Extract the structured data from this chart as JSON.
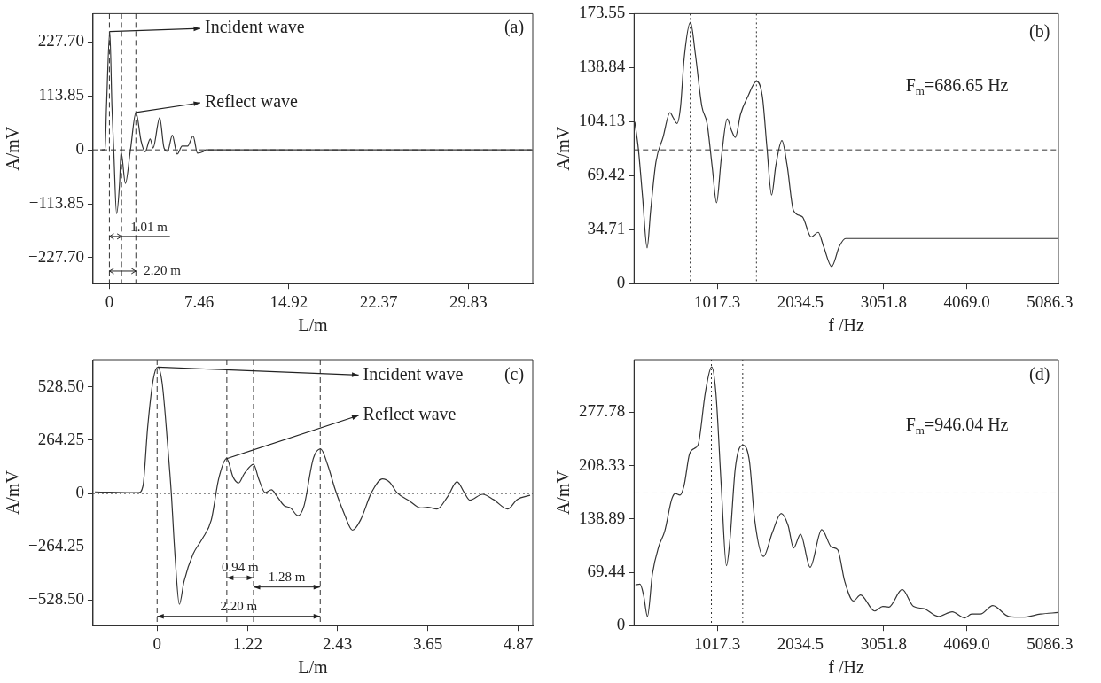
{
  "chart_data": [
    {
      "type": "line",
      "xlabel": "L/m",
      "ylabel": "A/mV",
      "xlim": [
        -1.36,
        35.19
      ],
      "ylim": [
        -282.6,
        287.7
      ],
      "xticks": [
        0,
        7.46,
        14.92,
        22.37,
        29.83
      ],
      "yticks": [
        {
          "value": 227.7,
          "label": "227.70"
        },
        113.85,
        0,
        {
          "value": -113.85,
          "label": "−113.85"
        },
        {
          "value": -227.7,
          "label": "−227.70"
        }
      ],
      "grid": false,
      "legend": false,
      "marker": "none",
      "line_style": "solid",
      "x": [
        -0.76,
        -0.36,
        -0.24,
        0.03,
        0.21,
        0.36,
        0.6,
        0.85,
        0.97,
        1.33,
        1.75,
        2.21,
        2.63,
        2.97,
        3.39,
        3.63,
        4.18,
        4.54,
        4.84,
        5.23,
        5.63,
        6.05,
        6.5,
        6.96,
        7.32,
        7.78,
        8.02,
        35.1
      ],
      "series": [
        {
          "color": "#333333",
          "values": [
            0,
            1,
            92,
            250,
            92,
            0,
            -135,
            -69,
            -4,
            -71,
            0,
            79,
            19,
            -4,
            23,
            4,
            68,
            4,
            -3,
            31,
            -9,
            8,
            8,
            29,
            -7,
            -4,
            0,
            0
          ]
        }
      ],
      "ref_lines": [
        {
          "axis": "x",
          "value": 0,
          "line_style": "dashed",
          "color": "#333333"
        },
        {
          "axis": "x",
          "value": 1.01,
          "line_style": "dashed",
          "color": "#333333"
        },
        {
          "axis": "x",
          "value": 2.2,
          "line_style": "dashed",
          "color": "#333333"
        },
        {
          "axis": "y",
          "value": 0,
          "line_style": "dashed",
          "color": "#333333"
        }
      ],
      "annotations": [
        {
          "text": "Incident wave",
          "x": 0.03,
          "y": 250
        },
        {
          "text": "Reflect wave",
          "x": 2.21,
          "y": 79
        },
        "1.01 m",
        {
          "text": "2.20 m",
          "x": 1.1,
          "y": -256
        },
        "(a)"
      ]
    },
    {
      "type": "line",
      "xlabel": "f /Hz",
      "ylabel": "A/mV",
      "xlim": [
        0,
        5190
      ],
      "ylim": [
        0,
        173.55
      ],
      "xticks": [
        1017.3,
        2034.5,
        3051.8,
        {
          "value": 4069,
          "label": "4069.0"
        },
        5086.3
      ],
      "yticks": [
        0,
        34.71,
        69.42,
        104.13,
        138.84,
        173.55
      ],
      "grid": false,
      "legend": false,
      "marker": "none",
      "line_style": "solid",
      "x": [
        9,
        52,
        104,
        160,
        203,
        267,
        354,
        440,
        475,
        526,
        569,
        613,
        690,
        751,
        829,
        893,
        958,
        1009,
        1066,
        1139,
        1195,
        1238,
        1303,
        1389,
        1497,
        1570,
        1626,
        1682,
        1734,
        1808,
        1872,
        1950,
        2058,
        2166,
        2252,
        2317,
        2416,
        2511,
        2588,
        5190
      ],
      "series": [
        {
          "color": "#333333",
          "values": [
            104,
            87,
            56,
            23,
            47,
            78,
            94,
            110,
            107,
            103,
            114,
            145,
            168,
            147,
            114,
            103,
            74,
            52,
            80,
            106,
            98,
            94,
            109,
            120,
            130,
            120,
            87,
            57,
            76,
            92,
            76,
            47,
            43,
            30,
            33,
            24,
            11,
            24,
            29,
            29
          ]
        }
      ],
      "ref_lines": [
        {
          "axis": "x",
          "value": 686.65,
          "line_style": "dotted",
          "color": "#333333"
        },
        {
          "axis": "x",
          "value": 1497,
          "line_style": "dotted",
          "color": "#333333"
        },
        {
          "axis": "y",
          "value": 86,
          "line_style": "dashed",
          "color": "#333333"
        }
      ],
      "annotations": [
        "F$_{m}$=686.65 Hz",
        "(b)"
      ]
    },
    {
      "type": "line",
      "xlabel": "L/m",
      "ylabel": "A/mV",
      "xlim": [
        -0.864,
        5.066
      ],
      "ylim": [
        -655.3,
        663.8
      ],
      "xticks": [
        0,
        1.22,
        2.43,
        3.65,
        4.87
      ],
      "yticks": [
        {
          "value": 528.5,
          "label": "528.50"
        },
        264.25,
        0,
        {
          "value": -264.25,
          "label": "−264.25"
        },
        {
          "value": -528.5,
          "label": "−528.50"
        }
      ],
      "grid": false,
      "legend": false,
      "marker": "none",
      "line_style": "solid",
      "x": [
        -0.839,
        -0.25,
        -0.19,
        -0.128,
        -0.054,
        0.01,
        0.069,
        0.142,
        0.191,
        0.24,
        0.3,
        0.363,
        0.486,
        0.609,
        0.731,
        0.83,
        0.938,
        1.026,
        1.1,
        1.173,
        1.3,
        1.37,
        1.458,
        1.542,
        1.615,
        1.713,
        1.8,
        1.9,
        1.98,
        2.106,
        2.204,
        2.302,
        2.4,
        2.52,
        2.636,
        2.744,
        2.89,
        3.04,
        3.137,
        3.235,
        3.407,
        3.554,
        3.652,
        3.775,
        3.922,
        4.045,
        4.143,
        4.217,
        4.39,
        4.536,
        4.73,
        4.855,
        5.03
      ],
      "series": [
        {
          "color": "#333333",
          "values": [
            8,
            4,
            38,
            326,
            562,
            627,
            545,
            241,
            4,
            -300,
            -550,
            -436,
            -300,
            -225,
            -131,
            72,
            173,
            80,
            52,
            97,
            145,
            72,
            4,
            18,
            -13,
            -60,
            -72,
            -110,
            -63,
            173,
            221,
            140,
            21,
            -97,
            -182,
            -131,
            4,
            72,
            55,
            4,
            -38,
            -72,
            -68,
            -77,
            -13,
            58,
            4,
            -33,
            -4,
            -30,
            -77,
            -30,
            -9
          ]
        }
      ],
      "ref_lines": [
        {
          "axis": "x",
          "value": 0,
          "line_style": "dashed",
          "color": "#333333"
        },
        {
          "axis": "x",
          "value": 0.94,
          "line_style": "dashed",
          "color": "#333333"
        },
        {
          "axis": "x",
          "value": 1.3,
          "line_style": "dashed",
          "color": "#333333"
        },
        {
          "axis": "x",
          "value": 2.2,
          "line_style": "dashed",
          "color": "#333333"
        },
        {
          "axis": "y",
          "value": 0,
          "line_style": "dotted",
          "color": "#333333"
        }
      ],
      "annotations": [
        {
          "text": "Incident wave",
          "x": 0.01,
          "y": 627
        },
        {
          "text": "Reflect wave",
          "x": 0.938,
          "y": 173
        },
        "0.94 m",
        "1.28 m",
        "2.20 m",
        "(c)"
      ]
    },
    {
      "type": "line",
      "xlabel": "f /Hz",
      "ylabel": "A/mV",
      "xlim": [
        0,
        5190
      ],
      "ylim": [
        0,
        346.3
      ],
      "xticks": [
        1017.3,
        2034.5,
        3051.8,
        {
          "value": 4069,
          "label": "4069.0"
        },
        5086.3
      ],
      "yticks": [
        0,
        69.44,
        138.89,
        208.33,
        277.78
      ],
      "grid": false,
      "legend": false,
      "marker": "none",
      "line_style": "solid",
      "x": [
        17,
        73,
        116,
        164,
        224,
        302,
        375,
        462,
        505,
        561,
        613,
        677,
        742,
        785,
        871,
        949,
        1001,
        1066,
        1130,
        1173,
        1238,
        1333,
        1411,
        1475,
        1583,
        1691,
        1799,
        1885,
        1950,
        2036,
        2153,
        2295,
        2416,
        2489,
        2575,
        2683,
        2769,
        2942,
        3041,
        3115,
        3279,
        3417,
        3546,
        3719,
        3891,
        4042,
        4129,
        4236,
        4387,
        4581,
        4754,
        4970,
        5186
      ],
      "series": [
        {
          "color": "#333333",
          "values": [
            53,
            54,
            40,
            12,
            67,
            103,
            123,
            165,
            172,
            170,
            183,
            223,
            231,
            236,
            303,
            337,
            303,
            183,
            78,
            112,
            205,
            235,
            214,
            138,
            90,
            121,
            146,
            130,
            101,
            119,
            76,
            125,
            102,
            99,
            58,
            32,
            40,
            19,
            25,
            24,
            47,
            25,
            22,
            12,
            18,
            10,
            15,
            15,
            26,
            12,
            11,
            15,
            17
          ]
        }
      ],
      "ref_lines": [
        {
          "axis": "x",
          "value": 946.04,
          "line_style": "dotted",
          "color": "#333333"
        },
        {
          "axis": "x",
          "value": 1329,
          "line_style": "dotted",
          "color": "#333333"
        },
        {
          "axis": "y",
          "value": 172.7,
          "line_style": "dashed",
          "color": "#333333"
        }
      ],
      "annotations": [
        "F$_{m}$=946.04 Hz",
        "(d)"
      ]
    }
  ]
}
